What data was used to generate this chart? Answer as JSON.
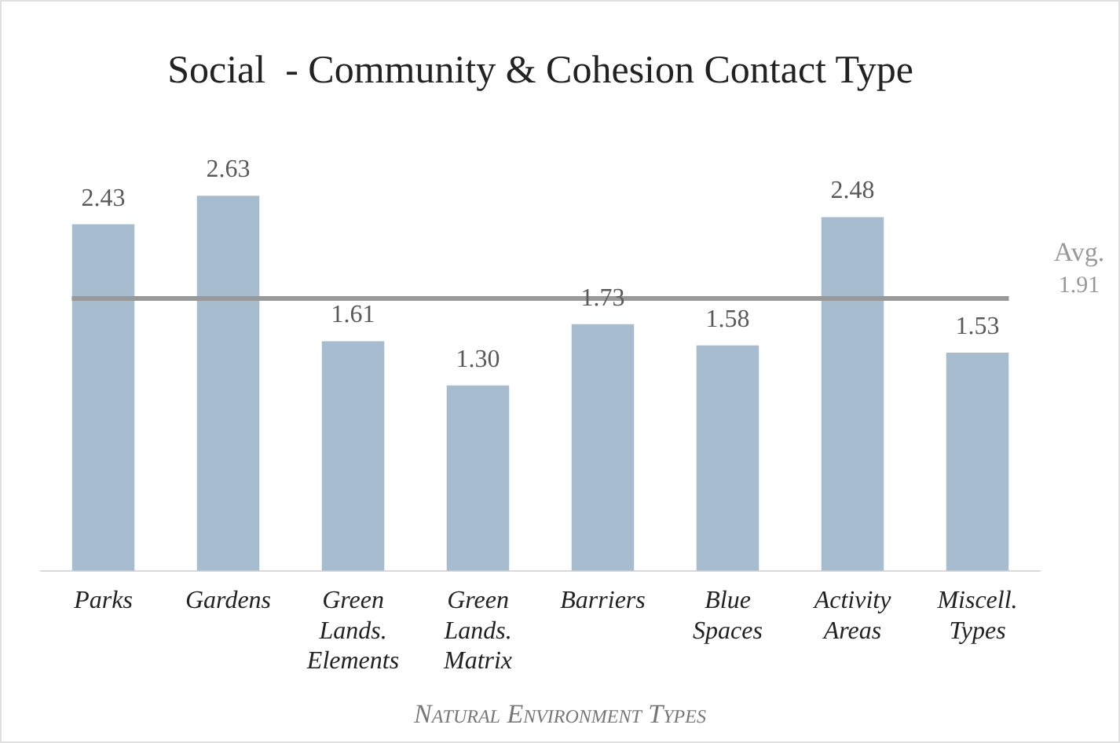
{
  "chart_data": {
    "type": "bar",
    "title": "Social  - Community & Cohesion Contact Type",
    "xlabel": "Natural Environment Types",
    "categories": [
      "Parks",
      "Gardens",
      "Green Lands. Elements",
      "Green Lands. Matrix",
      "Barriers",
      "Blue Spaces",
      "Activity Areas",
      "Miscell. Types"
    ],
    "values": [
      2.43,
      2.63,
      1.61,
      1.3,
      1.73,
      1.58,
      2.48,
      1.53
    ],
    "color": "#a8bccf",
    "value_labels": [
      "2.43",
      "2.63",
      "1.61",
      "1.30",
      "1.73",
      "1.58",
      "2.48",
      "1.53"
    ],
    "ref_lines": [
      {
        "axis": "y",
        "value": 1.91,
        "label": "Avg. 1.91",
        "color": "#999999"
      }
    ],
    "grid": false,
    "legend": false
  }
}
